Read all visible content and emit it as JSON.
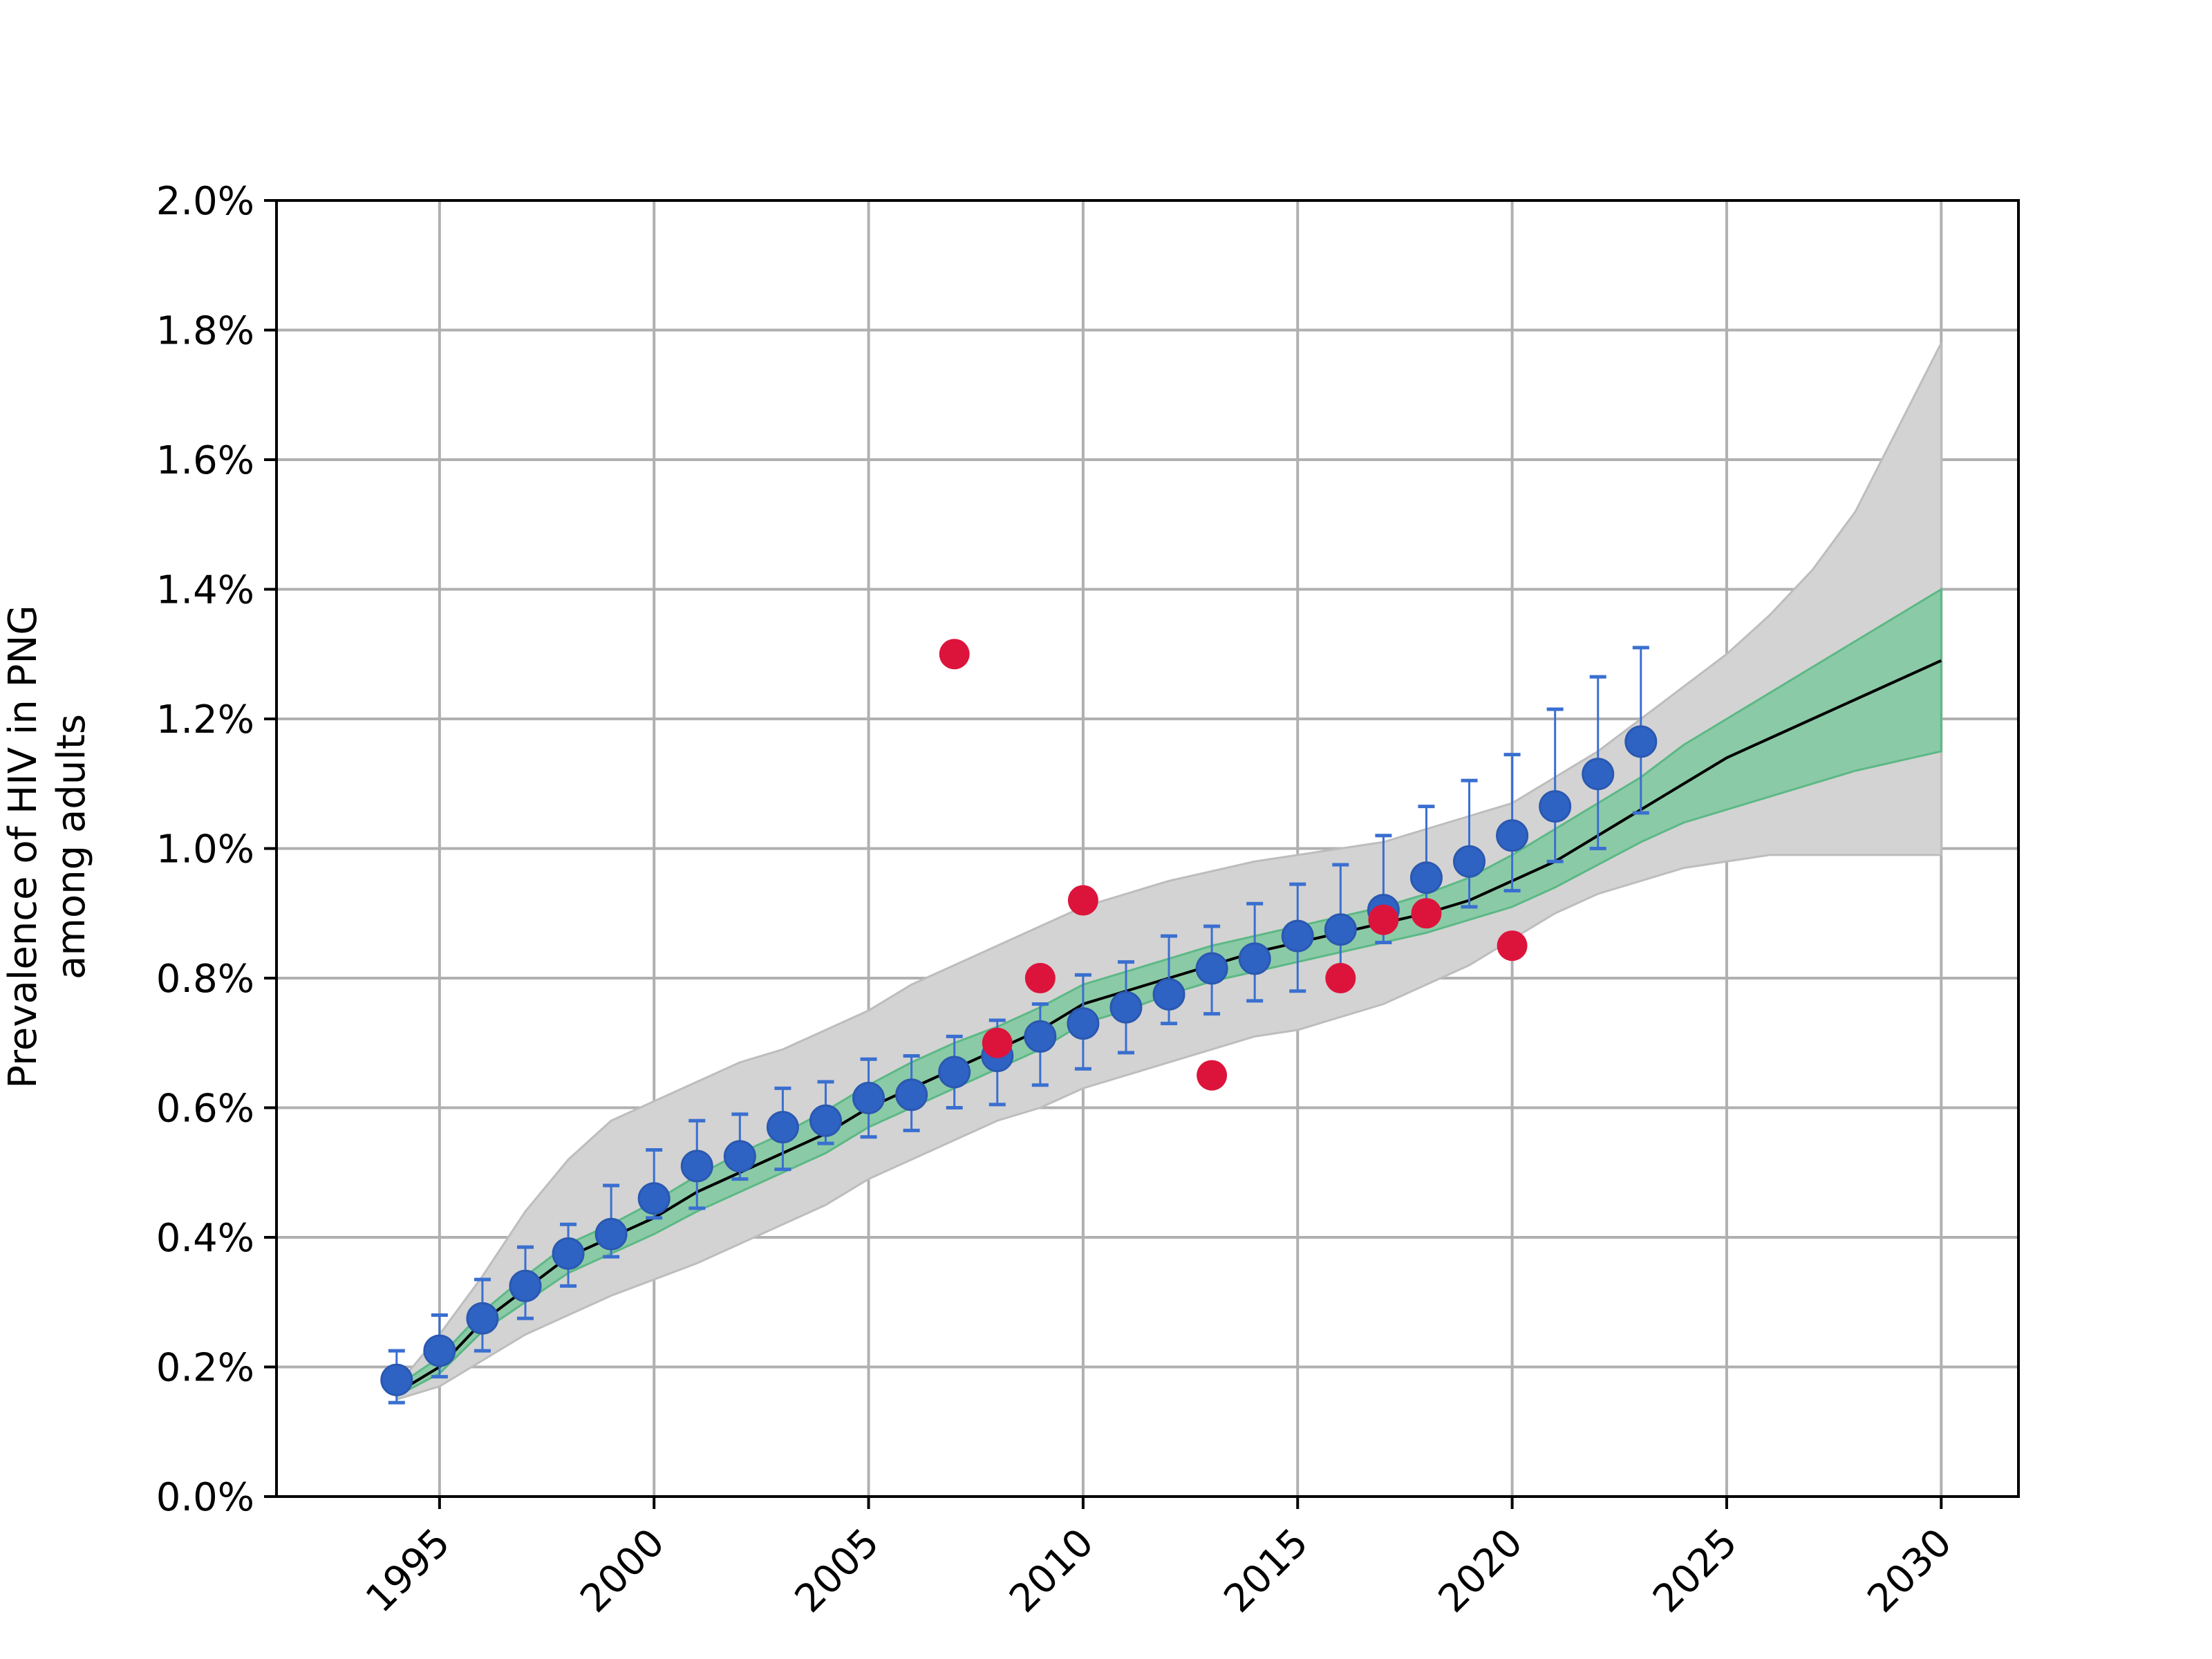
{
  "chart_data": {
    "type": "line",
    "ylabel_lines": [
      "Prevalence of HIV in PNG",
      "among adults"
    ],
    "x_ticks": [
      1995,
      2000,
      2005,
      2010,
      2015,
      2020,
      2025,
      2030
    ],
    "x_tick_labels": [
      "1995",
      "2000",
      "2005",
      "2010",
      "2015",
      "2020",
      "2025",
      "2030"
    ],
    "y_ticks": [
      0.0,
      0.2,
      0.4,
      0.6,
      0.8,
      1.0,
      1.2,
      1.4,
      1.6,
      1.8,
      2.0
    ],
    "y_tick_labels": [
      "0.0%",
      "0.2%",
      "0.4%",
      "0.6%",
      "0.8%",
      "1.0%",
      "1.2%",
      "1.4%",
      "1.6%",
      "1.8%",
      "2.0%"
    ],
    "xlim": [
      1991.2,
      2031.8
    ],
    "ylim": [
      0.0,
      2.0
    ],
    "grid": true,
    "colors": {
      "line": "#000000",
      "inner_band": "#7ec89e",
      "inner_band_edge": "#5cb885",
      "outer_band": "#d3d3d3",
      "outer_band_edge": "#bdbdbd",
      "blue_points": "#2e63c4",
      "blue_errorbar": "#3a6fd0",
      "red_points": "#dc143c",
      "grid": "#b0b0b0"
    },
    "series": [
      {
        "kind": "line",
        "x": [
          1994,
          1995,
          1996,
          1997,
          1998,
          1999,
          2000,
          2001,
          2002,
          2003,
          2004,
          2005,
          2006,
          2007,
          2008,
          2009,
          2010,
          2011,
          2012,
          2013,
          2014,
          2015,
          2016,
          2017,
          2018,
          2019,
          2020,
          2021,
          2022,
          2023,
          2024,
          2025,
          2026,
          2027,
          2028,
          2029,
          2030
        ],
        "y": [
          0.16,
          0.2,
          0.27,
          0.32,
          0.37,
          0.4,
          0.43,
          0.47,
          0.5,
          0.53,
          0.56,
          0.6,
          0.63,
          0.66,
          0.69,
          0.72,
          0.76,
          0.78,
          0.8,
          0.82,
          0.84,
          0.855,
          0.87,
          0.885,
          0.9,
          0.92,
          0.95,
          0.98,
          1.02,
          1.06,
          1.1,
          1.14,
          1.17,
          1.2,
          1.23,
          1.26,
          1.29
        ]
      },
      {
        "kind": "band",
        "x": [
          1994,
          1995,
          1996,
          1997,
          1998,
          1999,
          2000,
          2001,
          2002,
          2003,
          2004,
          2005,
          2006,
          2007,
          2008,
          2009,
          2010,
          2011,
          2012,
          2013,
          2014,
          2015,
          2016,
          2017,
          2018,
          2019,
          2020,
          2021,
          2022,
          2023,
          2024,
          2025,
          2026,
          2027,
          2028,
          2029,
          2030
        ],
        "low": [
          0.155,
          0.19,
          0.255,
          0.3,
          0.345,
          0.375,
          0.405,
          0.44,
          0.47,
          0.5,
          0.53,
          0.57,
          0.6,
          0.63,
          0.66,
          0.69,
          0.73,
          0.75,
          0.775,
          0.795,
          0.81,
          0.825,
          0.84,
          0.855,
          0.87,
          0.89,
          0.91,
          0.94,
          0.975,
          1.01,
          1.04,
          1.06,
          1.08,
          1.1,
          1.12,
          1.135,
          1.15
        ],
        "high": [
          0.17,
          0.215,
          0.285,
          0.34,
          0.39,
          0.42,
          0.455,
          0.495,
          0.53,
          0.56,
          0.595,
          0.635,
          0.67,
          0.7,
          0.725,
          0.755,
          0.79,
          0.81,
          0.83,
          0.85,
          0.865,
          0.88,
          0.895,
          0.91,
          0.93,
          0.955,
          0.99,
          1.03,
          1.07,
          1.11,
          1.16,
          1.2,
          1.24,
          1.28,
          1.32,
          1.36,
          1.4
        ]
      },
      {
        "kind": "band",
        "x": [
          1994,
          1995,
          1996,
          1997,
          1998,
          1999,
          2000,
          2001,
          2002,
          2003,
          2004,
          2005,
          2006,
          2007,
          2008,
          2009,
          2010,
          2011,
          2012,
          2013,
          2014,
          2015,
          2016,
          2017,
          2018,
          2019,
          2020,
          2021,
          2022,
          2023,
          2024,
          2025,
          2026,
          2027,
          2028,
          2029,
          2030
        ],
        "low": [
          0.15,
          0.17,
          0.21,
          0.25,
          0.28,
          0.31,
          0.335,
          0.36,
          0.39,
          0.42,
          0.45,
          0.49,
          0.52,
          0.55,
          0.58,
          0.6,
          0.63,
          0.65,
          0.67,
          0.69,
          0.71,
          0.72,
          0.74,
          0.76,
          0.79,
          0.82,
          0.86,
          0.9,
          0.93,
          0.95,
          0.97,
          0.98,
          0.99,
          0.99,
          0.99,
          0.99,
          0.99
        ],
        "high": [
          0.17,
          0.25,
          0.34,
          0.44,
          0.52,
          0.58,
          0.61,
          0.64,
          0.67,
          0.69,
          0.72,
          0.75,
          0.79,
          0.82,
          0.85,
          0.88,
          0.91,
          0.93,
          0.95,
          0.965,
          0.98,
          0.99,
          1.0,
          1.01,
          1.03,
          1.05,
          1.07,
          1.11,
          1.15,
          1.2,
          1.25,
          1.3,
          1.36,
          1.43,
          1.52,
          1.65,
          1.78
        ]
      },
      {
        "kind": "errorbar_points",
        "x": [
          1994,
          1995,
          1996,
          1997,
          1998,
          1999,
          2000,
          2001,
          2002,
          2003,
          2004,
          2005,
          2006,
          2007,
          2008,
          2009,
          2010,
          2011,
          2012,
          2013,
          2014,
          2015,
          2016,
          2017,
          2018,
          2019,
          2020,
          2021,
          2022,
          2023
        ],
        "y": [
          0.18,
          0.225,
          0.275,
          0.325,
          0.375,
          0.405,
          0.46,
          0.51,
          0.525,
          0.57,
          0.58,
          0.615,
          0.62,
          0.655,
          0.68,
          0.71,
          0.73,
          0.755,
          0.775,
          0.815,
          0.83,
          0.865,
          0.875,
          0.905,
          0.955,
          0.98,
          1.02,
          1.065,
          1.115,
          1.165
        ],
        "err_low": [
          0.145,
          0.185,
          0.225,
          0.275,
          0.325,
          0.37,
          0.43,
          0.445,
          0.49,
          0.505,
          0.545,
          0.555,
          0.565,
          0.6,
          0.605,
          0.635,
          0.66,
          0.685,
          0.73,
          0.745,
          0.765,
          0.78,
          0.8,
          0.855,
          0.895,
          0.91,
          0.935,
          0.98,
          1.0,
          1.055
        ],
        "err_high": [
          0.225,
          0.28,
          0.335,
          0.385,
          0.42,
          0.48,
          0.535,
          0.58,
          0.59,
          0.63,
          0.64,
          0.675,
          0.68,
          0.71,
          0.735,
          0.76,
          0.805,
          0.825,
          0.865,
          0.88,
          0.915,
          0.945,
          0.975,
          1.02,
          1.065,
          1.105,
          1.145,
          1.215,
          1.265,
          1.31
        ]
      },
      {
        "kind": "scatter",
        "x": [
          2007,
          2008,
          2009,
          2010,
          2013,
          2016,
          2017,
          2018,
          2020
        ],
        "y": [
          1.3,
          0.7,
          0.8,
          0.92,
          0.65,
          0.8,
          0.89,
          0.9,
          0.85
        ]
      }
    ]
  }
}
